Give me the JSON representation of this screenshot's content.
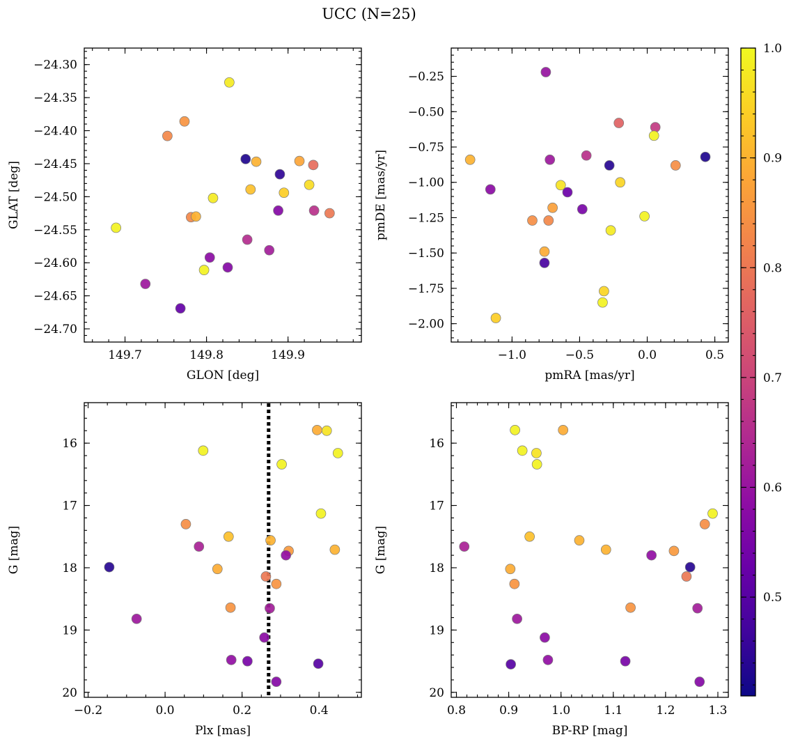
{
  "figure": {
    "suptitle": "UCC (N=25)"
  },
  "colorbar": {
    "cmap": "plasma",
    "range": [
      0.41,
      1.0
    ],
    "ticks": [
      0.5,
      0.6,
      0.7,
      0.8,
      0.9,
      1.0
    ],
    "tick_labels": [
      "0.5",
      "0.6",
      "0.7",
      "0.8",
      "0.9",
      "1.0"
    ]
  },
  "chart_data": [
    {
      "type": "scatter",
      "title": "",
      "xlabel": "GLON [deg]",
      "ylabel": "GLAT [deg]",
      "xlim": [
        149.65,
        149.99
      ],
      "ylim": [
        -24.72,
        -24.275
      ],
      "y_inverted": false,
      "xticks": [
        149.7,
        149.8,
        149.9
      ],
      "xtick_labels": [
        "149.7",
        "149.8",
        "149.9"
      ],
      "xminor": 0.02,
      "yticks": [
        -24.7,
        -24.65,
        -24.6,
        -24.55,
        -24.5,
        -24.45,
        -24.4,
        -24.35,
        -24.3
      ],
      "ytick_labels": [
        "−24.70",
        "−24.65",
        "−24.60",
        "−24.55",
        "−24.50",
        "−24.45",
        "−24.40",
        "−24.35",
        "−24.30"
      ],
      "yminor": 0.01,
      "grid": false,
      "points": [
        {
          "x": 149.828,
          "y": -24.327,
          "c": 0.98
        },
        {
          "x": 149.773,
          "y": -24.386,
          "c": 0.85
        },
        {
          "x": 149.752,
          "y": -24.408,
          "c": 0.83
        },
        {
          "x": 149.848,
          "y": -24.443,
          "c": 0.43
        },
        {
          "x": 149.861,
          "y": -24.447,
          "c": 0.9
        },
        {
          "x": 149.914,
          "y": -24.446,
          "c": 0.88
        },
        {
          "x": 149.931,
          "y": -24.452,
          "c": 0.78
        },
        {
          "x": 149.89,
          "y": -24.466,
          "c": 0.45
        },
        {
          "x": 149.926,
          "y": -24.482,
          "c": 0.96
        },
        {
          "x": 149.854,
          "y": -24.489,
          "c": 0.92
        },
        {
          "x": 149.895,
          "y": -24.494,
          "c": 0.94
        },
        {
          "x": 149.808,
          "y": -24.502,
          "c": 0.98
        },
        {
          "x": 149.888,
          "y": -24.521,
          "c": 0.57
        },
        {
          "x": 149.932,
          "y": -24.521,
          "c": 0.66
        },
        {
          "x": 149.951,
          "y": -24.525,
          "c": 0.8
        },
        {
          "x": 149.781,
          "y": -24.531,
          "c": 0.83
        },
        {
          "x": 149.787,
          "y": -24.53,
          "c": 0.9
        },
        {
          "x": 149.689,
          "y": -24.547,
          "c": 0.99
        },
        {
          "x": 149.85,
          "y": -24.565,
          "c": 0.65
        },
        {
          "x": 149.877,
          "y": -24.581,
          "c": 0.62
        },
        {
          "x": 149.804,
          "y": -24.592,
          "c": 0.58
        },
        {
          "x": 149.797,
          "y": -24.611,
          "c": 0.99
        },
        {
          "x": 149.826,
          "y": -24.607,
          "c": 0.57
        },
        {
          "x": 149.725,
          "y": -24.632,
          "c": 0.61
        },
        {
          "x": 149.768,
          "y": -24.669,
          "c": 0.52
        }
      ]
    },
    {
      "type": "scatter",
      "title": "",
      "xlabel": "pmRA [mas/yr]",
      "ylabel": "pmDE [mas/yr]",
      "xlim": [
        -1.45,
        0.6
      ],
      "ylim": [
        -2.13,
        -0.05
      ],
      "y_inverted": false,
      "xticks": [
        -1.0,
        -0.5,
        0.0,
        0.5
      ],
      "xtick_labels": [
        "−1.0",
        "−0.5",
        "0.0",
        "0.5"
      ],
      "xminor": 0.1,
      "yticks": [
        -2.0,
        -1.75,
        -1.5,
        -1.25,
        -1.0,
        -0.75,
        -0.5,
        -0.25
      ],
      "ytick_labels": [
        "−2.00",
        "−1.75",
        "−1.50",
        "−1.25",
        "−1.00",
        "−0.75",
        "−0.50",
        "−0.25"
      ],
      "yminor": 0.05,
      "grid": false,
      "points": [
        {
          "x": -0.75,
          "y": -0.22,
          "c": 0.6
        },
        {
          "x": -0.21,
          "y": -0.58,
          "c": 0.76
        },
        {
          "x": 0.06,
          "y": -0.61,
          "c": 0.68
        },
        {
          "x": 0.05,
          "y": -0.67,
          "c": 0.99
        },
        {
          "x": -1.31,
          "y": -0.84,
          "c": 0.9
        },
        {
          "x": -0.45,
          "y": -0.81,
          "c": 0.66
        },
        {
          "x": -0.72,
          "y": -0.84,
          "c": 0.61
        },
        {
          "x": 0.43,
          "y": -0.82,
          "c": 0.43
        },
        {
          "x": -0.28,
          "y": -0.88,
          "c": 0.44
        },
        {
          "x": 0.21,
          "y": -0.88,
          "c": 0.84
        },
        {
          "x": -1.16,
          "y": -1.05,
          "c": 0.58
        },
        {
          "x": -0.64,
          "y": -1.02,
          "c": 0.97
        },
        {
          "x": -0.2,
          "y": -1.0,
          "c": 0.95
        },
        {
          "x": -0.59,
          "y": -1.07,
          "c": 0.53
        },
        {
          "x": -0.7,
          "y": -1.18,
          "c": 0.87
        },
        {
          "x": -0.48,
          "y": -1.19,
          "c": 0.55
        },
        {
          "x": -0.85,
          "y": -1.27,
          "c": 0.84
        },
        {
          "x": -0.73,
          "y": -1.27,
          "c": 0.83
        },
        {
          "x": -0.02,
          "y": -1.24,
          "c": 0.99
        },
        {
          "x": -0.27,
          "y": -1.34,
          "c": 0.98
        },
        {
          "x": -0.76,
          "y": -1.49,
          "c": 0.89
        },
        {
          "x": -0.76,
          "y": -1.57,
          "c": 0.48
        },
        {
          "x": -0.32,
          "y": -1.77,
          "c": 0.95
        },
        {
          "x": -0.33,
          "y": -1.85,
          "c": 0.99
        },
        {
          "x": -1.12,
          "y": -1.96,
          "c": 0.94
        }
      ]
    },
    {
      "type": "scatter",
      "title": "",
      "xlabel": "Plx [mas]",
      "ylabel": "G [mag]",
      "xlim": [
        -0.21,
        0.51
      ],
      "ylim": [
        20.08,
        15.35
      ],
      "y_inverted": true,
      "xticks": [
        -0.2,
        0.0,
        0.2,
        0.4
      ],
      "xtick_labels": [
        "−0.2",
        "0.0",
        "0.2",
        "0.4"
      ],
      "xminor": 0.05,
      "yticks": [
        16,
        17,
        18,
        19,
        20
      ],
      "ytick_labels": [
        "16",
        "17",
        "18",
        "19",
        "20"
      ],
      "yminor": 0.2,
      "grid": false,
      "vline": {
        "x": 0.269,
        "style": "dotted",
        "color": "#000000"
      },
      "points": [
        {
          "x": 0.395,
          "y": 15.79,
          "c": 0.89
        },
        {
          "x": 0.42,
          "y": 15.8,
          "c": 0.97
        },
        {
          "x": 0.449,
          "y": 16.16,
          "c": 0.99
        },
        {
          "x": 0.099,
          "y": 16.12,
          "c": 0.99
        },
        {
          "x": 0.303,
          "y": 16.34,
          "c": 0.99
        },
        {
          "x": 0.054,
          "y": 17.3,
          "c": 0.84
        },
        {
          "x": 0.405,
          "y": 17.13,
          "c": 0.99
        },
        {
          "x": 0.165,
          "y": 17.5,
          "c": 0.92
        },
        {
          "x": 0.274,
          "y": 17.56,
          "c": 0.9
        },
        {
          "x": 0.088,
          "y": 17.66,
          "c": 0.63
        },
        {
          "x": 0.321,
          "y": 17.73,
          "c": 0.86
        },
        {
          "x": 0.314,
          "y": 17.8,
          "c": 0.59
        },
        {
          "x": 0.441,
          "y": 17.71,
          "c": 0.9
        },
        {
          "x": -0.145,
          "y": 17.99,
          "c": 0.44
        },
        {
          "x": 0.136,
          "y": 18.02,
          "c": 0.89
        },
        {
          "x": 0.262,
          "y": 18.14,
          "c": 0.8
        },
        {
          "x": 0.289,
          "y": 18.26,
          "c": 0.85
        },
        {
          "x": 0.17,
          "y": 18.64,
          "c": 0.85
        },
        {
          "x": 0.272,
          "y": 18.65,
          "c": 0.62
        },
        {
          "x": -0.074,
          "y": 18.82,
          "c": 0.61
        },
        {
          "x": 0.258,
          "y": 19.12,
          "c": 0.58
        },
        {
          "x": 0.172,
          "y": 19.48,
          "c": 0.59
        },
        {
          "x": 0.214,
          "y": 19.5,
          "c": 0.55
        },
        {
          "x": 0.398,
          "y": 19.54,
          "c": 0.5
        },
        {
          "x": 0.289,
          "y": 19.83,
          "c": 0.57
        }
      ]
    },
    {
      "type": "scatter",
      "title": "",
      "xlabel": "BP-RP [mag]",
      "ylabel": "G [mag]",
      "xlim": [
        0.79,
        1.32
      ],
      "ylim": [
        20.08,
        15.35
      ],
      "y_inverted": true,
      "xticks": [
        0.8,
        0.9,
        1.0,
        1.1,
        1.2,
        1.3
      ],
      "xtick_labels": [
        "0.8",
        "0.9",
        "1.0",
        "1.1",
        "1.2",
        "1.3"
      ],
      "xminor": 0.02,
      "yticks": [
        16,
        17,
        18,
        19,
        20
      ],
      "ytick_labels": [
        "16",
        "17",
        "18",
        "19",
        "20"
      ],
      "yminor": 0.2,
      "grid": false,
      "points": [
        {
          "x": 0.912,
          "y": 15.79,
          "c": 0.99
        },
        {
          "x": 1.004,
          "y": 15.79,
          "c": 0.89
        },
        {
          "x": 0.926,
          "y": 16.12,
          "c": 0.99
        },
        {
          "x": 0.953,
          "y": 16.16,
          "c": 0.97
        },
        {
          "x": 0.954,
          "y": 16.34,
          "c": 0.99
        },
        {
          "x": 1.29,
          "y": 17.13,
          "c": 0.99
        },
        {
          "x": 1.275,
          "y": 17.3,
          "c": 0.84
        },
        {
          "x": 0.94,
          "y": 17.5,
          "c": 0.92
        },
        {
          "x": 1.035,
          "y": 17.56,
          "c": 0.9
        },
        {
          "x": 0.815,
          "y": 17.66,
          "c": 0.63
        },
        {
          "x": 1.086,
          "y": 17.71,
          "c": 0.9
        },
        {
          "x": 1.216,
          "y": 17.73,
          "c": 0.86
        },
        {
          "x": 1.173,
          "y": 17.8,
          "c": 0.59
        },
        {
          "x": 1.247,
          "y": 17.99,
          "c": 0.44
        },
        {
          "x": 0.903,
          "y": 18.02,
          "c": 0.89
        },
        {
          "x": 1.24,
          "y": 18.14,
          "c": 0.8
        },
        {
          "x": 0.911,
          "y": 18.26,
          "c": 0.85
        },
        {
          "x": 1.133,
          "y": 18.64,
          "c": 0.85
        },
        {
          "x": 1.261,
          "y": 18.65,
          "c": 0.62
        },
        {
          "x": 0.916,
          "y": 18.82,
          "c": 0.61
        },
        {
          "x": 0.969,
          "y": 19.12,
          "c": 0.58
        },
        {
          "x": 0.975,
          "y": 19.48,
          "c": 0.59
        },
        {
          "x": 1.123,
          "y": 19.5,
          "c": 0.55
        },
        {
          "x": 0.904,
          "y": 19.55,
          "c": 0.5
        },
        {
          "x": 1.265,
          "y": 19.83,
          "c": 0.57
        }
      ]
    }
  ]
}
